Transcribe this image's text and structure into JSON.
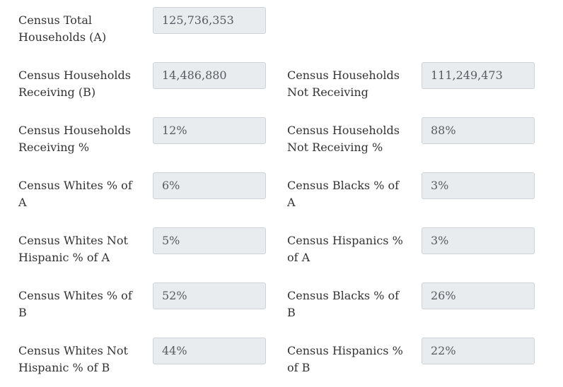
{
  "fields": [
    {
      "label": "Census Total Households (A)",
      "value": "125,736,353"
    },
    {
      "label": "Census Households Receiving (B)",
      "value": "14,486,880"
    },
    {
      "label": "Census Households Not Receiving",
      "value": "111,249,473"
    },
    {
      "label": "Census Households Receiving %",
      "value": "12%"
    },
    {
      "label": "Census Households Not Receiving %",
      "value": "88%"
    },
    {
      "label": "Census Whites % of A",
      "value": "6%"
    },
    {
      "label": "Census Blacks % of A",
      "value": "3%"
    },
    {
      "label": "Census Whites Not Hispanic % of A",
      "value": "5%"
    },
    {
      "label": "Census Hispanics % of A",
      "value": "3%"
    },
    {
      "label": "Census Whites % of B",
      "value": "52%"
    },
    {
      "label": "Census Blacks % of B",
      "value": "26%"
    },
    {
      "label": "Census Whites Not Hispanic % of B",
      "value": "44%"
    },
    {
      "label": "Census Hispanics % of B",
      "value": "22%"
    }
  ]
}
